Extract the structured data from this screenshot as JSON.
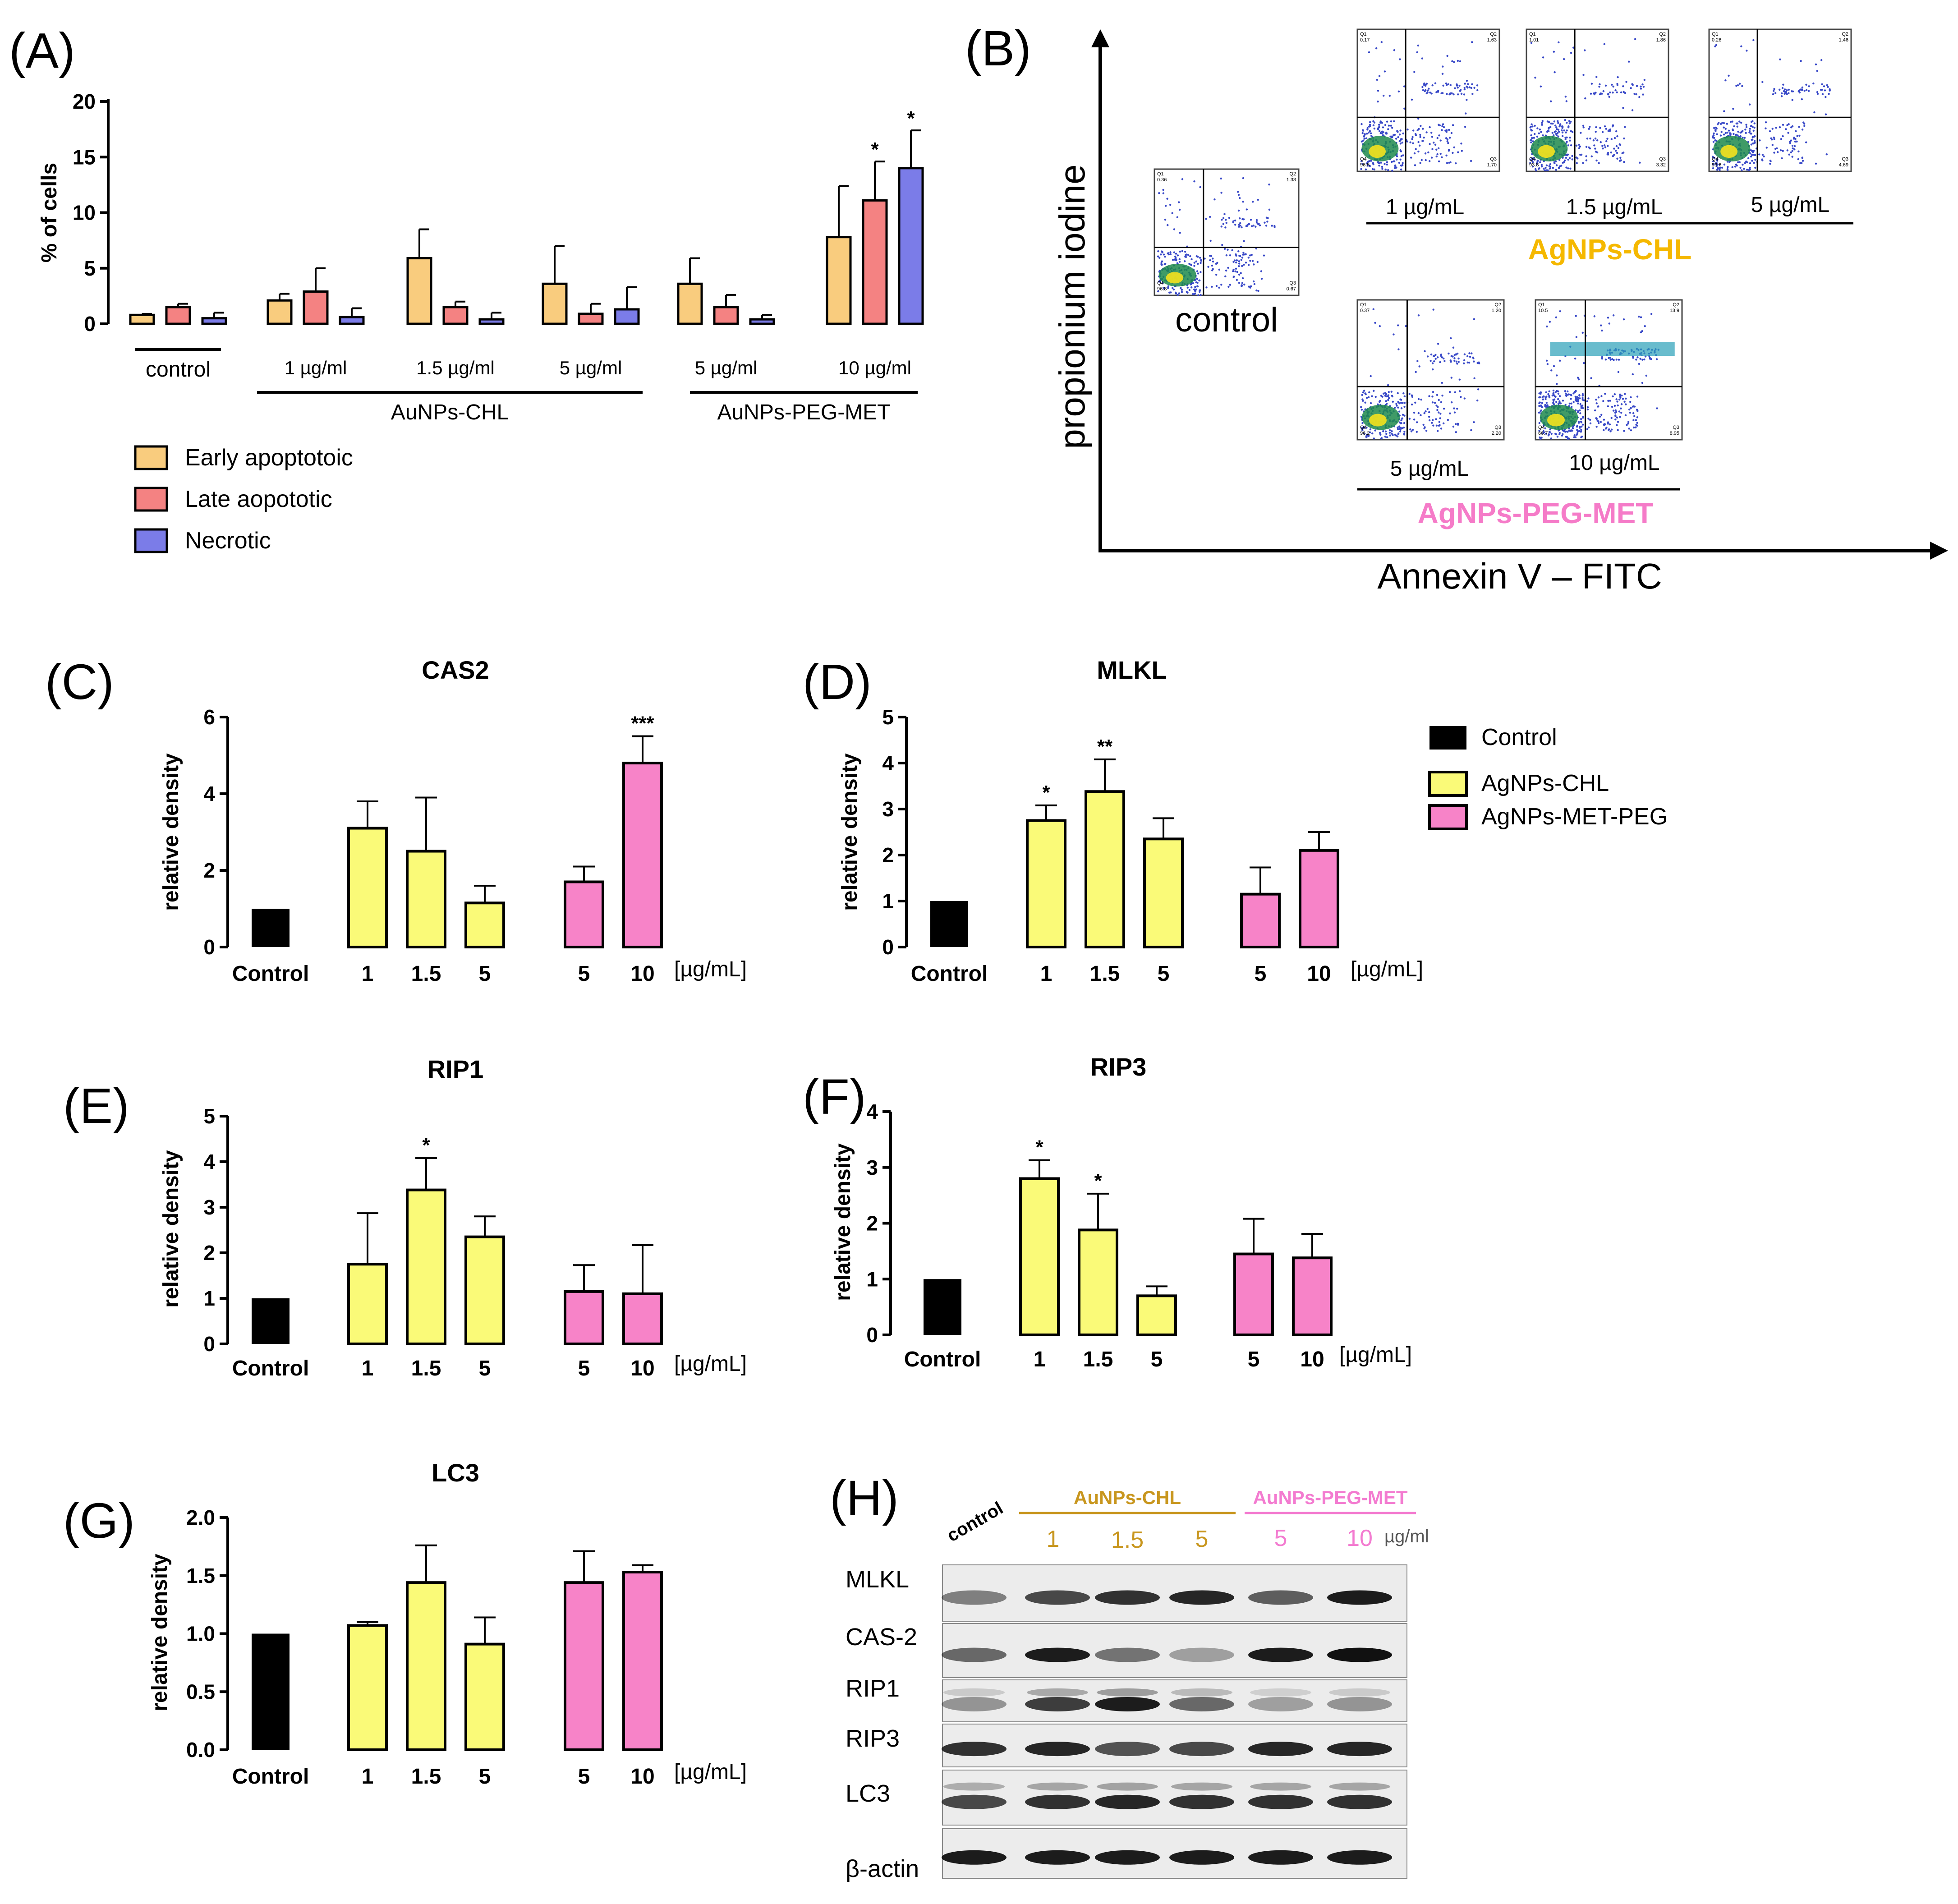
{
  "panels": {
    "A": "(A)",
    "B": "(B)",
    "C": "(C)",
    "D": "(D)",
    "E": "(E)",
    "F": "(F)",
    "G": "(G)",
    "H": "(H)"
  },
  "colors": {
    "early": "#F9CC7E",
    "late": "#F48282",
    "necrotic": "#7B7CE8",
    "control": "#000000",
    "chl": "#FAFA78",
    "peg": "#F783C8",
    "chl_label": "#F5B800",
    "peg_label": "#F57BC8",
    "wb_chl": "#C8961E",
    "wb_peg": "#F37BD0"
  },
  "chart_data": [
    {
      "id": "A",
      "type": "bar",
      "ylabel": "% of cells",
      "ylim": [
        0,
        20
      ],
      "yticks": [
        "0",
        "5",
        "10",
        "15",
        "20"
      ],
      "groups": [
        "control",
        "1 µg/ml",
        "1.5 µg/ml",
        "5 µg/ml",
        "5 µg/ml",
        "10 µg/ml"
      ],
      "group_brackets": [
        {
          "label": "AuNPs-CHL",
          "from": 1,
          "to": 3
        },
        {
          "label": "AuNPs-PEG-MET",
          "from": 4,
          "to": 5
        }
      ],
      "series": [
        {
          "name": "Early apoptotoic",
          "values": [
            0.8,
            2.1,
            5.9,
            3.6,
            3.6,
            7.8
          ],
          "errors": [
            0.1,
            0.6,
            2.6,
            3.4,
            2.3,
            4.6
          ]
        },
        {
          "name": "Late aopototic",
          "values": [
            1.5,
            2.9,
            1.5,
            0.9,
            1.5,
            11.1
          ],
          "errors": [
            0.3,
            2.1,
            0.5,
            0.9,
            1.1,
            3.5
          ]
        },
        {
          "name": "Necrotic",
          "values": [
            0.5,
            0.6,
            0.4,
            1.3,
            0.4,
            14.0
          ],
          "errors": [
            0.5,
            0.8,
            0.6,
            2.0,
            0.4,
            3.4
          ]
        }
      ],
      "significance": [
        {
          "group": 5,
          "series": 1,
          "label": "*"
        },
        {
          "group": 5,
          "series": 2,
          "label": "*"
        }
      ]
    },
    {
      "id": "C",
      "type": "bar",
      "title": "CAS2",
      "ylabel": "relative density",
      "ylim": [
        0,
        6
      ],
      "yticks": [
        "0",
        "2",
        "4",
        "6"
      ],
      "categories": [
        "Control",
        "1",
        "1.5",
        "5",
        "5",
        "10"
      ],
      "unit": "[µg/mL]",
      "values": [
        1.0,
        3.1,
        2.5,
        1.15,
        1.7,
        4.8
      ],
      "errors": [
        0,
        0.7,
        1.4,
        0.45,
        0.4,
        0.7
      ],
      "significance": [
        "",
        "",
        "",
        "",
        "",
        "***"
      ]
    },
    {
      "id": "D",
      "type": "bar",
      "title": "MLKL",
      "ylabel": "relative density",
      "ylim": [
        0,
        5
      ],
      "yticks": [
        "0",
        "1",
        "2",
        "3",
        "4",
        "5"
      ],
      "categories": [
        "Control",
        "1",
        "1.5",
        "5",
        "5",
        "10"
      ],
      "unit": "[µg/mL]",
      "values": [
        1.0,
        2.75,
        3.38,
        2.35,
        1.15,
        2.1
      ],
      "errors": [
        0,
        0.33,
        0.7,
        0.45,
        0.58,
        0.4
      ],
      "significance": [
        "",
        "*",
        "**",
        "",
        "",
        ""
      ]
    },
    {
      "id": "E",
      "type": "bar",
      "title": "RIP1",
      "ylabel": "relative density",
      "ylim": [
        0,
        5
      ],
      "yticks": [
        "0",
        "1",
        "2",
        "3",
        "4",
        "5"
      ],
      "categories": [
        "Control",
        "1",
        "1.5",
        "5",
        "5",
        "10"
      ],
      "unit": "[µg/mL]",
      "values": [
        1.0,
        1.75,
        3.38,
        2.35,
        1.15,
        1.1
      ],
      "errors": [
        0,
        1.12,
        0.7,
        0.45,
        0.58,
        1.07
      ],
      "significance": [
        "",
        "",
        "*",
        "",
        "",
        ""
      ]
    },
    {
      "id": "F",
      "type": "bar",
      "title": "RIP3",
      "ylabel": "relative density",
      "ylim": [
        0,
        4
      ],
      "yticks": [
        "0",
        "1",
        "2",
        "3",
        "4"
      ],
      "categories": [
        "Control",
        "1",
        "1.5",
        "5",
        "5",
        "10"
      ],
      "unit": "[µg/mL]",
      "values": [
        1.0,
        2.8,
        1.88,
        0.7,
        1.45,
        1.38
      ],
      "errors": [
        0,
        0.33,
        0.65,
        0.17,
        0.63,
        0.43
      ],
      "significance": [
        "",
        "*",
        "*",
        "",
        "",
        ""
      ]
    },
    {
      "id": "G",
      "type": "bar",
      "title": "LC3",
      "ylabel": "relative density",
      "ylim": [
        0,
        2
      ],
      "yticks": [
        "0.0",
        "0.5",
        "1.0",
        "1.5",
        "2.0"
      ],
      "categories": [
        "Control",
        "1",
        "1.5",
        "5",
        "5",
        "10"
      ],
      "unit": "[µg/mL]",
      "values": [
        1.0,
        1.07,
        1.44,
        0.91,
        1.44,
        1.53
      ],
      "errors": [
        0,
        0.03,
        0.32,
        0.23,
        0.27,
        0.06
      ],
      "significance": [
        "",
        "",
        "",
        "",
        "",
        ""
      ]
    }
  ],
  "legend_A": [
    "Early apoptotoic",
    "Late aopototic",
    "Necrotic"
  ],
  "legend_CD": [
    "Control",
    "AgNPs-CHL",
    "AgNPs-MET-PEG"
  ],
  "flow": {
    "y_axis_label": "propionium iodine",
    "x_axis_label": "Annexin V – FITC",
    "control_label": "control",
    "chl_label": "AgNPs-CHL",
    "peg_label": "AgNPs-PEG-MET",
    "chl_concs": [
      "1 µg/mL",
      "1.5 µg/mL",
      "5 µg/mL"
    ],
    "peg_concs": [
      "5 µg/mL",
      "10 µg/mL"
    ],
    "quadrants": {
      "control": {
        "q1": "0.36",
        "q2": "1.38",
        "q3": "0.67",
        "q4": "96.8"
      },
      "chl1": {
        "q1": "0.17",
        "q2": "1.63",
        "q3": "1.70",
        "q4": "96.5"
      },
      "chl15": {
        "q1": "1.01",
        "q2": "1.86",
        "q3": "3.32",
        "q4": "93.8"
      },
      "chl5": {
        "q1": "0.26",
        "q2": "1.46",
        "q3": "4.69",
        "q4": "93.6"
      },
      "peg5": {
        "q1": "0.37",
        "q2": "1.20",
        "q3": "2.20",
        "q4": "96.2"
      },
      "peg10": {
        "q1": "10.5",
        "q2": "13.9",
        "q3": "8.95",
        "q4": "66.7"
      }
    }
  },
  "western": {
    "control_label": "control",
    "chl_label": "AuNPs-CHL",
    "peg_label": "AuNPs-PEG-MET",
    "lane_labels": [
      "1",
      "1.5",
      "5",
      "5",
      "10"
    ],
    "unit": "µg/ml",
    "proteins": [
      "MLKL",
      "CAS-2",
      "RIP1",
      "RIP3",
      "LC3",
      "β-actin"
    ]
  }
}
